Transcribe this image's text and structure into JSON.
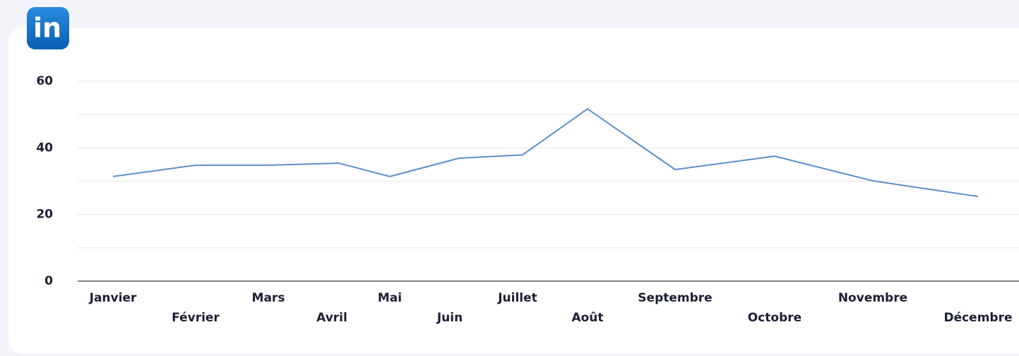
{
  "logo": "in",
  "chart_data": {
    "type": "line",
    "categories": [
      "Janvier",
      "Février",
      "Mars",
      "Avril",
      "Mai",
      "Juin",
      "Juillet",
      "Août",
      "Septembre",
      "Octobre",
      "Novembre",
      "Décembre"
    ],
    "series": [
      {
        "color": "#5b8fc9",
        "values": [
          31.4,
          34.8,
          34.8,
          35.4,
          31.4,
          36.9,
          37.9,
          51.7,
          33.5,
          37.5,
          30.1,
          25.4
        ]
      }
    ],
    "ylim": [
      0,
      60
    ],
    "yticks": [
      0,
      20,
      40,
      60
    ],
    "minor_yticks": [
      10,
      30,
      50
    ],
    "grid": true
  }
}
